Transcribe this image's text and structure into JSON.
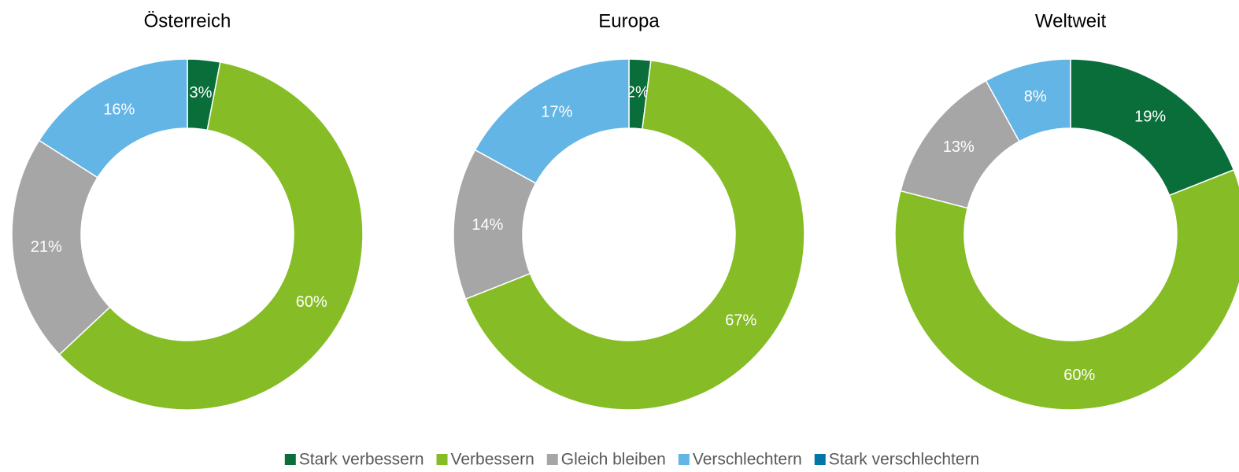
{
  "chart_data": [
    {
      "type": "donut",
      "title": "Österreich",
      "categories": [
        "Stark verbessern",
        "Verbessern",
        "Gleich bleiben",
        "Verschlechtern",
        "Stark verschlechtern"
      ],
      "colors": [
        "#0a6e3a",
        "#86bc25",
        "#a6a6a6",
        "#62b5e5",
        "#0076a8"
      ],
      "values": [
        3,
        60,
        21,
        16,
        0
      ],
      "value_labels": [
        "3%",
        "60%",
        "21%",
        "16%",
        null
      ]
    },
    {
      "type": "donut",
      "title": "Europa",
      "categories": [
        "Stark verbessern",
        "Verbessern",
        "Gleich bleiben",
        "Verschlechtern",
        "Stark verschlechtern"
      ],
      "colors": [
        "#0a6e3a",
        "#86bc25",
        "#a6a6a6",
        "#62b5e5",
        "#0076a8"
      ],
      "values": [
        2,
        67,
        14,
        17,
        0
      ],
      "value_labels": [
        "2%",
        "67%",
        "14%",
        "17%",
        null
      ]
    },
    {
      "type": "donut",
      "title": "Weltweit",
      "categories": [
        "Stark verbessern",
        "Verbessern",
        "Gleich bleiben",
        "Verschlechtern",
        "Stark verschlechtern"
      ],
      "colors": [
        "#0a6e3a",
        "#86bc25",
        "#a6a6a6",
        "#62b5e5",
        "#0076a8"
      ],
      "values": [
        19,
        60,
        13,
        8,
        0
      ],
      "value_labels": [
        "19%",
        "60%",
        "13%",
        "8%",
        null
      ]
    }
  ]
}
